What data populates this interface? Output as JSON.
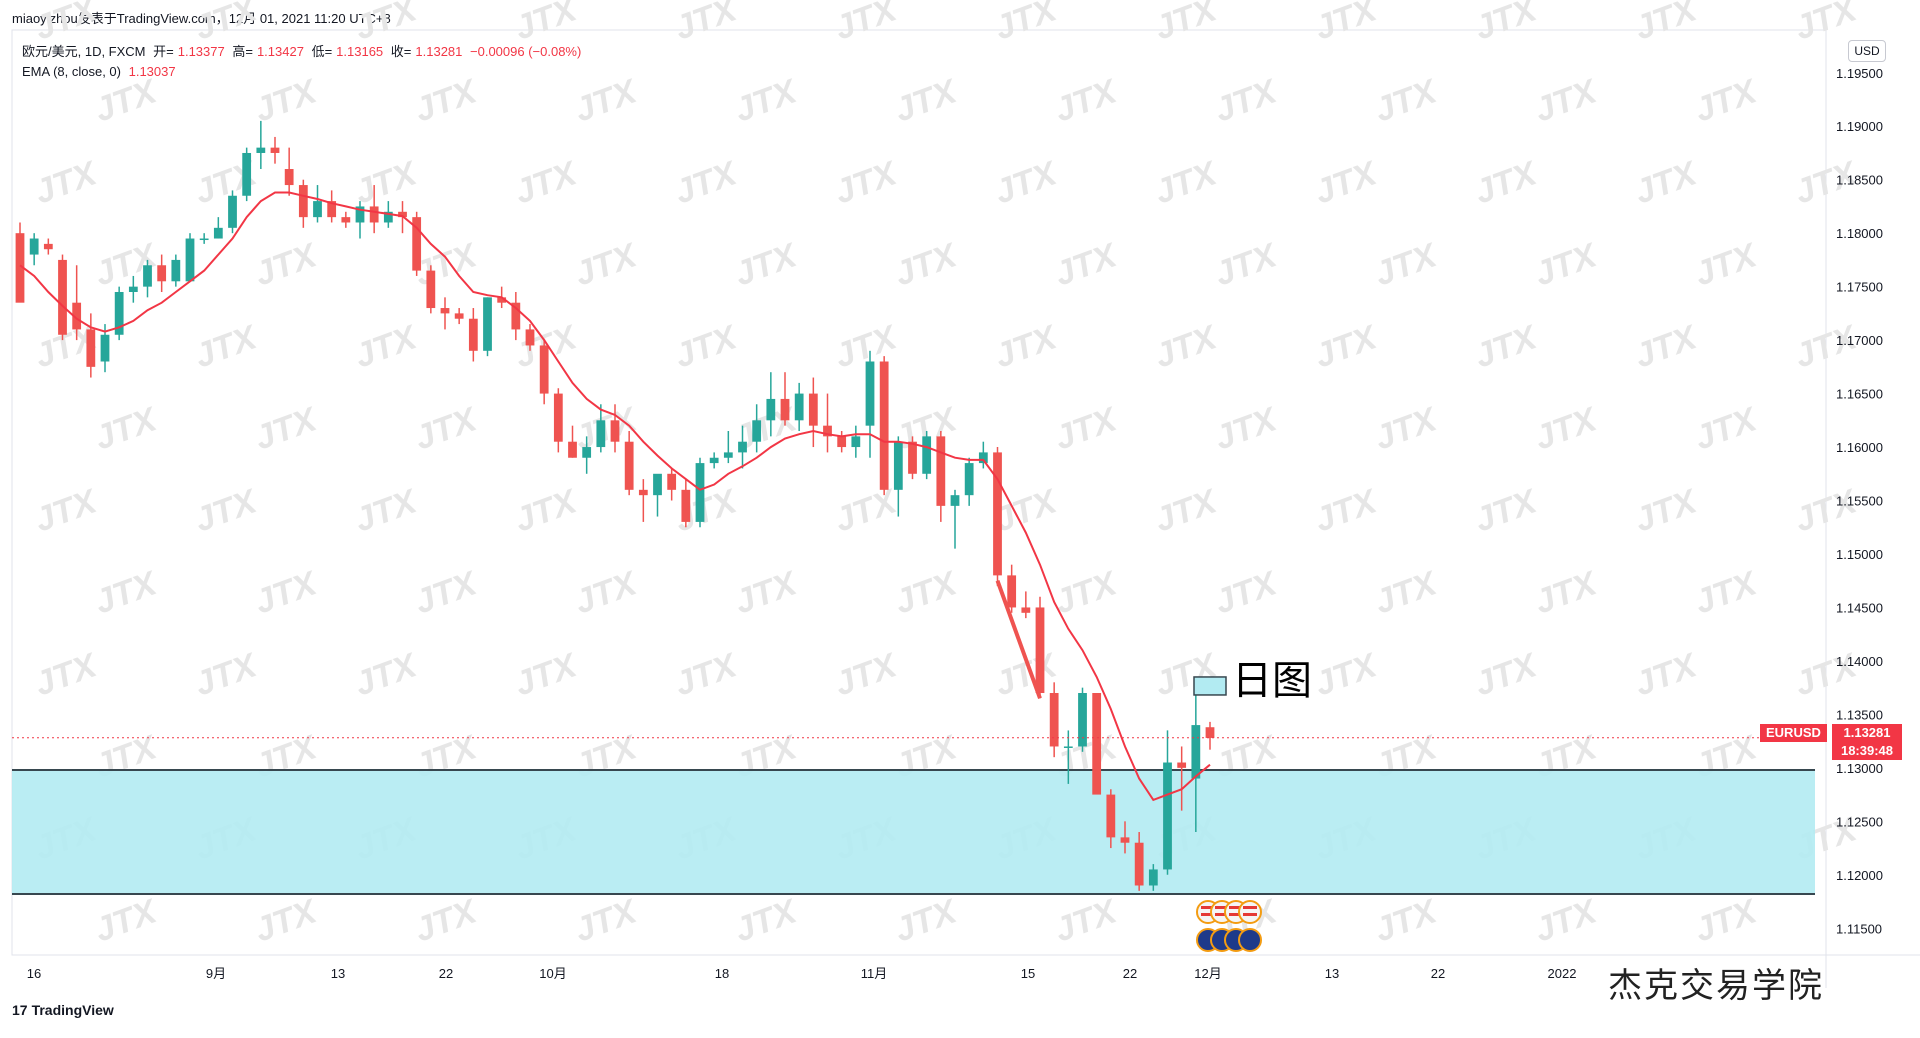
{
  "header": {
    "publisher": "miaoyizhou发表于TradingView.com，12月 01, 2021 11:20 UTC+8"
  },
  "legend": {
    "symbol": "欧元/美元, 1D, FXCM",
    "open_label": "开=",
    "open": "1.13377",
    "high_label": "高=",
    "high": "1.13427",
    "low_label": "低=",
    "low": "1.13165",
    "close_label": "收=",
    "close": "1.13281",
    "change": "−0.00096 (−0.08%)",
    "ema_label": "EMA (8, close, 0)",
    "ema_value": "1.13037"
  },
  "price_axis": {
    "currency": "USD",
    "ticks": [
      "1.19500",
      "1.19000",
      "1.18500",
      "1.18000",
      "1.17500",
      "1.17000",
      "1.16500",
      "1.16000",
      "1.15500",
      "1.15000",
      "1.14500",
      "1.14000",
      "1.13500",
      "1.13000",
      "1.12500",
      "1.12000",
      "1.11500"
    ]
  },
  "last_price": {
    "symbol": "EURUSD",
    "price": "1.13281",
    "countdown": "18:39:48"
  },
  "annotation_label": "日图",
  "time_axis": [
    "16",
    "9月",
    "13",
    "22",
    "10月",
    "18",
    "11月",
    "15",
    "22",
    "12月",
    "13",
    "22",
    "2022"
  ],
  "footer": {
    "logo": "17",
    "name": "TradingView"
  },
  "brand": "杰克交易学院",
  "watermark": "JTX",
  "colors": {
    "up": "#26a69a",
    "down": "#ef5350",
    "ema": "#f23645",
    "zone": "#b2ebf2",
    "zone_border": "#37474f"
  },
  "chart_data": {
    "type": "candlestick",
    "title": "欧元/美元, 1D, FXCM",
    "ylim": [
      1.1125,
      1.199
    ],
    "grid": true,
    "x": [
      "16",
      "9月",
      "13",
      "22",
      "10月",
      "18",
      "11月",
      "15",
      "22",
      "12月",
      "13",
      "22",
      "2022"
    ],
    "candles_ohlc": [
      [
        1.18,
        1.181,
        1.174,
        1.1735
      ],
      [
        1.178,
        1.18,
        1.177,
        1.1795
      ],
      [
        1.179,
        1.1795,
        1.178,
        1.1785
      ],
      [
        1.1775,
        1.178,
        1.17,
        1.1705
      ],
      [
        1.1735,
        1.177,
        1.17,
        1.171
      ],
      [
        1.171,
        1.1725,
        1.1665,
        1.1675
      ],
      [
        1.168,
        1.1715,
        1.167,
        1.1705
      ],
      [
        1.1705,
        1.175,
        1.17,
        1.1745
      ],
      [
        1.1745,
        1.176,
        1.1735,
        1.175
      ],
      [
        1.175,
        1.1775,
        1.174,
        1.177
      ],
      [
        1.177,
        1.178,
        1.1745,
        1.1755
      ],
      [
        1.1755,
        1.178,
        1.175,
        1.1775
      ],
      [
        1.1755,
        1.18,
        1.1755,
        1.1795
      ],
      [
        1.1795,
        1.18,
        1.179,
        1.1795
      ],
      [
        1.1795,
        1.1815,
        1.1795,
        1.1805
      ],
      [
        1.1805,
        1.184,
        1.18,
        1.1835
      ],
      [
        1.1835,
        1.188,
        1.183,
        1.1875
      ],
      [
        1.1875,
        1.1905,
        1.186,
        1.188
      ],
      [
        1.188,
        1.189,
        1.1865,
        1.1875
      ],
      [
        1.186,
        1.188,
        1.1835,
        1.1845
      ],
      [
        1.1845,
        1.185,
        1.1805,
        1.1815
      ],
      [
        1.1815,
        1.1845,
        1.181,
        1.183
      ],
      [
        1.183,
        1.184,
        1.181,
        1.1815
      ],
      [
        1.1815,
        1.182,
        1.1805,
        1.181
      ],
      [
        1.181,
        1.183,
        1.1795,
        1.1825
      ],
      [
        1.1825,
        1.1845,
        1.18,
        1.181
      ],
      [
        1.181,
        1.183,
        1.1805,
        1.182
      ],
      [
        1.182,
        1.183,
        1.18,
        1.1815
      ],
      [
        1.1815,
        1.182,
        1.176,
        1.1765
      ],
      [
        1.1765,
        1.177,
        1.1725,
        1.173
      ],
      [
        1.173,
        1.174,
        1.171,
        1.1725
      ],
      [
        1.1725,
        1.173,
        1.1715,
        1.172
      ],
      [
        1.172,
        1.173,
        1.168,
        1.169
      ],
      [
        1.169,
        1.174,
        1.1685,
        1.174
      ],
      [
        1.174,
        1.175,
        1.173,
        1.1735
      ],
      [
        1.1735,
        1.1745,
        1.17,
        1.171
      ],
      [
        1.171,
        1.1715,
        1.169,
        1.1695
      ],
      [
        1.1695,
        1.17,
        1.164,
        1.165
      ],
      [
        1.165,
        1.1655,
        1.1595,
        1.1605
      ],
      [
        1.1605,
        1.162,
        1.159,
        1.159
      ],
      [
        1.159,
        1.161,
        1.1575,
        1.16
      ],
      [
        1.16,
        1.164,
        1.1595,
        1.1625
      ],
      [
        1.1625,
        1.164,
        1.1595,
        1.1605
      ],
      [
        1.1605,
        1.1615,
        1.1555,
        1.156
      ],
      [
        1.156,
        1.157,
        1.153,
        1.1555
      ],
      [
        1.1555,
        1.157,
        1.1535,
        1.1575
      ],
      [
        1.1575,
        1.158,
        1.155,
        1.156
      ],
      [
        1.156,
        1.157,
        1.1525,
        1.153
      ],
      [
        1.153,
        1.159,
        1.1525,
        1.1585
      ],
      [
        1.1585,
        1.1595,
        1.158,
        1.159
      ],
      [
        1.159,
        1.1615,
        1.1585,
        1.1595
      ],
      [
        1.1595,
        1.162,
        1.158,
        1.1605
      ],
      [
        1.1605,
        1.164,
        1.1595,
        1.1625
      ],
      [
        1.1625,
        1.167,
        1.161,
        1.1645
      ],
      [
        1.1645,
        1.167,
        1.162,
        1.1625
      ],
      [
        1.1625,
        1.166,
        1.1615,
        1.165
      ],
      [
        1.165,
        1.1665,
        1.16,
        1.162
      ],
      [
        1.162,
        1.165,
        1.1595,
        1.161
      ],
      [
        1.161,
        1.1615,
        1.1595,
        1.16
      ],
      [
        1.16,
        1.162,
        1.159,
        1.161
      ],
      [
        1.162,
        1.169,
        1.159,
        1.168
      ],
      [
        1.168,
        1.1685,
        1.1555,
        1.156
      ],
      [
        1.156,
        1.161,
        1.1535,
        1.1605
      ],
      [
        1.1605,
        1.161,
        1.157,
        1.1575
      ],
      [
        1.1575,
        1.1615,
        1.157,
        1.161
      ],
      [
        1.161,
        1.1615,
        1.153,
        1.1545
      ],
      [
        1.1545,
        1.156,
        1.1505,
        1.1555
      ],
      [
        1.1555,
        1.159,
        1.1545,
        1.1585
      ],
      [
        1.1585,
        1.1605,
        1.158,
        1.1595
      ],
      [
        1.1595,
        1.16,
        1.147,
        1.148
      ],
      [
        1.148,
        1.149,
        1.1445,
        1.145
      ],
      [
        1.145,
        1.1465,
        1.144,
        1.1445
      ],
      [
        1.145,
        1.146,
        1.1365,
        1.137
      ],
      [
        1.137,
        1.138,
        1.131,
        1.132
      ],
      [
        1.132,
        1.1335,
        1.1285,
        1.132
      ],
      [
        1.132,
        1.1375,
        1.1315,
        1.137
      ],
      [
        1.137,
        1.137,
        1.128,
        1.1275
      ],
      [
        1.1275,
        1.128,
        1.1225,
        1.1235
      ],
      [
        1.1235,
        1.125,
        1.122,
        1.123
      ],
      [
        1.123,
        1.124,
        1.1185,
        1.119
      ],
      [
        1.119,
        1.121,
        1.1185,
        1.1205
      ],
      [
        1.1205,
        1.1335,
        1.12,
        1.1305
      ],
      [
        1.1305,
        1.132,
        1.126,
        1.13
      ],
      [
        1.129,
        1.137,
        1.124,
        1.134
      ],
      [
        1.1338,
        1.1343,
        1.1317,
        1.1328
      ]
    ],
    "ema": [
      1.177,
      1.176,
      1.1745,
      1.1732,
      1.172,
      1.1712,
      1.1708,
      1.1712,
      1.1718,
      1.1728,
      1.1735,
      1.1745,
      1.1755,
      1.1765,
      1.178,
      1.1795,
      1.1815,
      1.183,
      1.1838,
      1.1838,
      1.1835,
      1.1832,
      1.1828,
      1.1825,
      1.1822,
      1.182,
      1.1818,
      1.1816,
      1.1805,
      1.179,
      1.1778,
      1.176,
      1.1745,
      1.1742,
      1.174,
      1.173,
      1.1718,
      1.17,
      1.168,
      1.166,
      1.1645,
      1.1635,
      1.163,
      1.162,
      1.1605,
      1.1592,
      1.158,
      1.157,
      1.156,
      1.1565,
      1.1575,
      1.1582,
      1.159,
      1.16,
      1.1608,
      1.1612,
      1.1615,
      1.1612,
      1.161,
      1.1612,
      1.1612,
      1.1605,
      1.1605,
      1.1603,
      1.16,
      1.1595,
      1.159,
      1.1588,
      1.1588,
      1.157,
      1.1545,
      1.152,
      1.149,
      1.1455,
      1.143,
      1.141,
      1.1385,
      1.1355,
      1.132,
      1.129,
      1.127,
      1.1275,
      1.128,
      1.1292,
      1.1303
    ],
    "zone": [
      1.1182,
      1.1298
    ],
    "last_price": 1.13281
  }
}
